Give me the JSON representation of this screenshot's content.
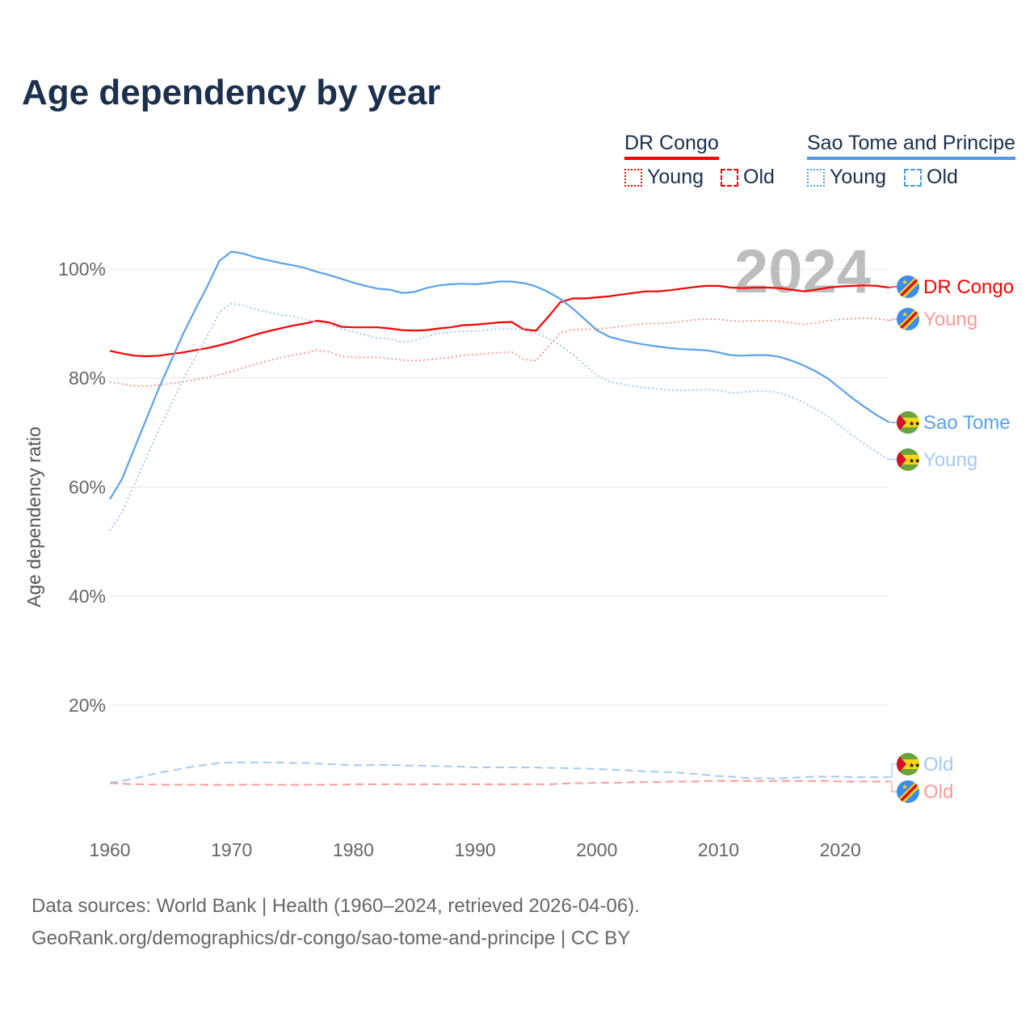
{
  "title": "Age dependency by year",
  "legend": {
    "groups": [
      {
        "name": "DR Congo",
        "color": "#ff0000",
        "items": [
          "Young",
          "Old"
        ]
      },
      {
        "name": "Sao Tome and Principe",
        "color": "#4f9ae8",
        "items": [
          "Young",
          "Old"
        ]
      }
    ]
  },
  "year_watermark": "2024",
  "source_line1": "Data sources: World Bank | Health (1960–2024, retrieved 2026-04-06).",
  "source_line2": "GeoRank.org/demographics/dr-congo/sao-tome-and-principe | CC BY",
  "chart_data": {
    "type": "line",
    "title": "Age dependency by year",
    "ylabel": "Age dependency ratio",
    "xlabel": "",
    "xlim": [
      1960,
      2024
    ],
    "ylim": [
      0,
      105
    ],
    "x_ticks": [
      "1960",
      "1970",
      "1980",
      "1990",
      "2000",
      "2010",
      "2020"
    ],
    "y_ticks": [
      "20%",
      "40%",
      "60%",
      "80%",
      "100%"
    ],
    "x_start": 1960,
    "series": [
      {
        "name": "DR Congo",
        "label": "DR Congo",
        "color": "#ff0000",
        "style": "solid",
        "flag": "cd",
        "values": [
          85.0,
          84.5,
          84.1,
          84.0,
          84.1,
          84.4,
          84.7,
          85.1,
          85.5,
          86.0,
          86.6,
          87.3,
          88.0,
          88.6,
          89.1,
          89.6,
          90.0,
          90.5,
          90.2,
          89.4,
          89.3,
          89.3,
          89.3,
          89.1,
          88.8,
          88.7,
          88.8,
          89.1,
          89.3,
          89.7,
          89.8,
          90.0,
          90.2,
          90.3,
          88.9,
          88.7,
          91.2,
          93.9,
          94.6,
          94.6,
          94.8,
          95.0,
          95.3,
          95.6,
          95.9,
          95.9,
          96.1,
          96.4,
          96.7,
          96.9,
          96.9,
          96.6,
          96.5,
          96.6,
          96.6,
          96.5,
          96.2,
          95.9,
          96.2,
          96.6,
          96.8,
          96.9,
          97.0,
          96.9,
          96.6
        ]
      },
      {
        "name": "DR Congo Young",
        "label": "Young",
        "color": "#ff9a9a",
        "style": "dotted",
        "flag": "cd",
        "values": [
          79.3,
          78.9,
          78.6,
          78.5,
          78.7,
          79.0,
          79.3,
          79.7,
          80.1,
          80.6,
          81.2,
          81.9,
          82.6,
          83.2,
          83.7,
          84.2,
          84.6,
          85.1,
          84.8,
          84.0,
          83.8,
          83.8,
          83.8,
          83.6,
          83.3,
          83.2,
          83.3,
          83.6,
          83.8,
          84.2,
          84.3,
          84.5,
          84.7,
          84.8,
          83.4,
          83.2,
          85.7,
          88.3,
          88.9,
          88.9,
          89.0,
          89.2,
          89.5,
          89.7,
          90.0,
          90.0,
          90.1,
          90.4,
          90.7,
          90.8,
          90.8,
          90.5,
          90.4,
          90.5,
          90.5,
          90.4,
          90.1,
          89.8,
          90.1,
          90.5,
          90.8,
          90.9,
          91.0,
          90.9,
          90.6
        ]
      },
      {
        "name": "DR Congo Old",
        "label": "Old",
        "color": "#ff9a9a",
        "style": "dashed",
        "flag": "cd",
        "values": [
          5.7,
          5.6,
          5.5,
          5.5,
          5.4,
          5.4,
          5.4,
          5.4,
          5.4,
          5.4,
          5.4,
          5.4,
          5.4,
          5.4,
          5.4,
          5.4,
          5.4,
          5.4,
          5.4,
          5.4,
          5.5,
          5.5,
          5.5,
          5.5,
          5.5,
          5.5,
          5.5,
          5.5,
          5.5,
          5.5,
          5.5,
          5.5,
          5.5,
          5.5,
          5.5,
          5.5,
          5.5,
          5.6,
          5.7,
          5.7,
          5.8,
          5.8,
          5.8,
          5.9,
          5.9,
          5.9,
          6.0,
          6.0,
          6.0,
          6.1,
          6.1,
          6.1,
          6.1,
          6.1,
          6.1,
          6.1,
          6.1,
          6.1,
          6.1,
          6.1,
          6.0,
          6.0,
          6.0,
          6.0,
          6.0
        ]
      },
      {
        "name": "Sao Tome and Principe",
        "label": "Sao Tome",
        "color": "#5aa2ea",
        "style": "solid",
        "flag": "st",
        "values": [
          57.8,
          61.5,
          67.0,
          72.5,
          78.0,
          83.0,
          88.0,
          92.5,
          96.8,
          101.5,
          103.2,
          102.8,
          102.1,
          101.6,
          101.1,
          100.7,
          100.2,
          99.5,
          98.9,
          98.2,
          97.5,
          96.9,
          96.4,
          96.2,
          95.6,
          95.8,
          96.5,
          97.0,
          97.2,
          97.3,
          97.2,
          97.4,
          97.7,
          97.7,
          97.4,
          96.8,
          95.8,
          94.5,
          92.8,
          90.8,
          88.8,
          87.6,
          87.0,
          86.5,
          86.1,
          85.8,
          85.5,
          85.3,
          85.2,
          85.1,
          84.7,
          84.2,
          84.1,
          84.2,
          84.2,
          83.9,
          83.2,
          82.3,
          81.2,
          79.9,
          78.1,
          76.3,
          74.7,
          73.2,
          71.9
        ]
      },
      {
        "name": "Sao Tome and Principe Young",
        "label": "Young",
        "color": "#a6c9f2",
        "style": "dotted",
        "flag": "st",
        "values": [
          52.0,
          55.4,
          60.4,
          65.4,
          70.4,
          75.0,
          79.6,
          83.7,
          87.7,
          92.1,
          93.7,
          93.3,
          92.6,
          92.1,
          91.6,
          91.3,
          90.8,
          90.2,
          89.7,
          89.1,
          88.5,
          87.9,
          87.3,
          87.2,
          86.6,
          86.9,
          87.6,
          88.2,
          88.4,
          88.6,
          88.6,
          88.8,
          89.1,
          89.1,
          88.8,
          88.2,
          87.3,
          86.0,
          84.4,
          82.4,
          80.5,
          79.4,
          78.9,
          78.5,
          78.2,
          78.0,
          77.8,
          77.7,
          77.8,
          77.9,
          77.7,
          77.3,
          77.4,
          77.6,
          77.6,
          77.3,
          76.5,
          75.5,
          74.3,
          73.0,
          71.2,
          69.5,
          67.9,
          66.4,
          65.1
        ]
      },
      {
        "name": "Sao Tome and Principe Old",
        "label": "Old",
        "color": "#a6c9f2",
        "style": "dashed",
        "flag": "st",
        "values": [
          5.8,
          6.1,
          6.6,
          7.1,
          7.6,
          8.0,
          8.4,
          8.8,
          9.1,
          9.4,
          9.5,
          9.5,
          9.5,
          9.5,
          9.5,
          9.4,
          9.4,
          9.3,
          9.2,
          9.1,
          9.0,
          9.0,
          9.1,
          9.0,
          9.0,
          8.9,
          8.9,
          8.8,
          8.8,
          8.7,
          8.6,
          8.6,
          8.6,
          8.6,
          8.6,
          8.6,
          8.5,
          8.5,
          8.4,
          8.4,
          8.3,
          8.2,
          8.1,
          8.0,
          7.9,
          7.8,
          7.7,
          7.6,
          7.4,
          7.2,
          7.0,
          6.9,
          6.7,
          6.6,
          6.6,
          6.6,
          6.7,
          6.8,
          6.9,
          6.9,
          6.9,
          6.8,
          6.8,
          6.8,
          6.8
        ]
      }
    ]
  }
}
